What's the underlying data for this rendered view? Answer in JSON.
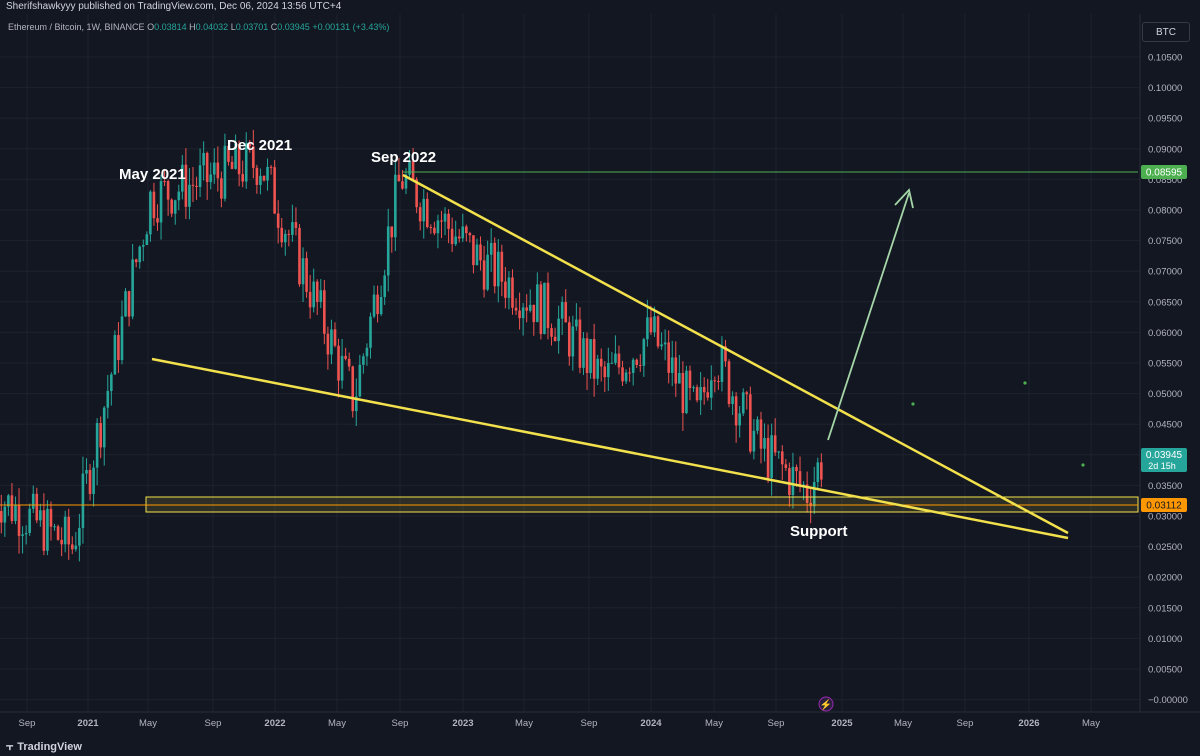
{
  "header": {
    "published": "Sherifshawkyyy published on TradingView.com, Dec 06, 2024 13:56 UTC+4"
  },
  "symbol": {
    "name": "Ethereum / Bitcoin, 1W, BINANCE",
    "o_label": "O",
    "o_value": "0.03814",
    "h_label": "H",
    "h_value": "0.04032",
    "l_label": "L",
    "l_value": "0.03701",
    "c_label": "C",
    "c_value": "0.03945",
    "change": "+0.00131 (+3.43%)"
  },
  "currency_button": "BTC",
  "footer": {
    "brand": "TradingView"
  },
  "colors": {
    "background": "#131722",
    "up": "#26a69a",
    "down": "#ef5350",
    "trendline": "#f2e14c",
    "target": "#a5d6a7",
    "resistance": "#4caf50",
    "support_box": "#f2e14c"
  },
  "chart_data": {
    "type": "candlestick",
    "y_axis": {
      "range": [
        -0.003,
        0.109
      ],
      "ticks": [
        "0.10500",
        "0.10000",
        "0.09500",
        "0.09000",
        "0.08500",
        "0.08000",
        "0.07500",
        "0.07000",
        "0.06500",
        "0.06000",
        "0.05500",
        "0.05000",
        "0.04500",
        "0.04000",
        "0.03500",
        "0.03000",
        "0.02500",
        "0.02000",
        "0.01500",
        "0.01000",
        "0.00500",
        "−0.00000"
      ]
    },
    "x_axis": {
      "ticks": [
        "Sep",
        "2021",
        "May",
        "Sep",
        "2022",
        "May",
        "Sep",
        "2023",
        "May",
        "Sep",
        "2024",
        "May",
        "Sep",
        "2025",
        "May",
        "Sep",
        "2026",
        "May"
      ]
    },
    "price_labels": [
      {
        "name": "resistance",
        "value": "0.08595"
      },
      {
        "name": "current",
        "value": "0.03945",
        "sub": "2d 15h"
      },
      {
        "name": "support",
        "value": "0.03112"
      }
    ],
    "annotations": [
      "May 2021",
      "Dec 2021",
      "Sep 2022",
      "Support"
    ],
    "key_points": [
      {
        "date": "2020-07",
        "value": 0.0335
      },
      {
        "date": "2020-12",
        "value": 0.025
      },
      {
        "date": "2021-05",
        "value": 0.082
      },
      {
        "date": "2021-12",
        "value": 0.088
      },
      {
        "date": "2022-06",
        "value": 0.049
      },
      {
        "date": "2022-09",
        "value": 0.0855
      },
      {
        "date": "2023-02",
        "value": 0.072
      },
      {
        "date": "2023-07",
        "value": 0.062
      },
      {
        "date": "2023-10",
        "value": 0.052
      },
      {
        "date": "2024-01",
        "value": 0.06
      },
      {
        "date": "2024-04",
        "value": 0.046
      },
      {
        "date": "2024-05",
        "value": 0.057
      },
      {
        "date": "2024-08",
        "value": 0.041
      },
      {
        "date": "2024-11",
        "value": 0.034
      },
      {
        "date": "2024-12",
        "value": 0.03945
      }
    ]
  }
}
